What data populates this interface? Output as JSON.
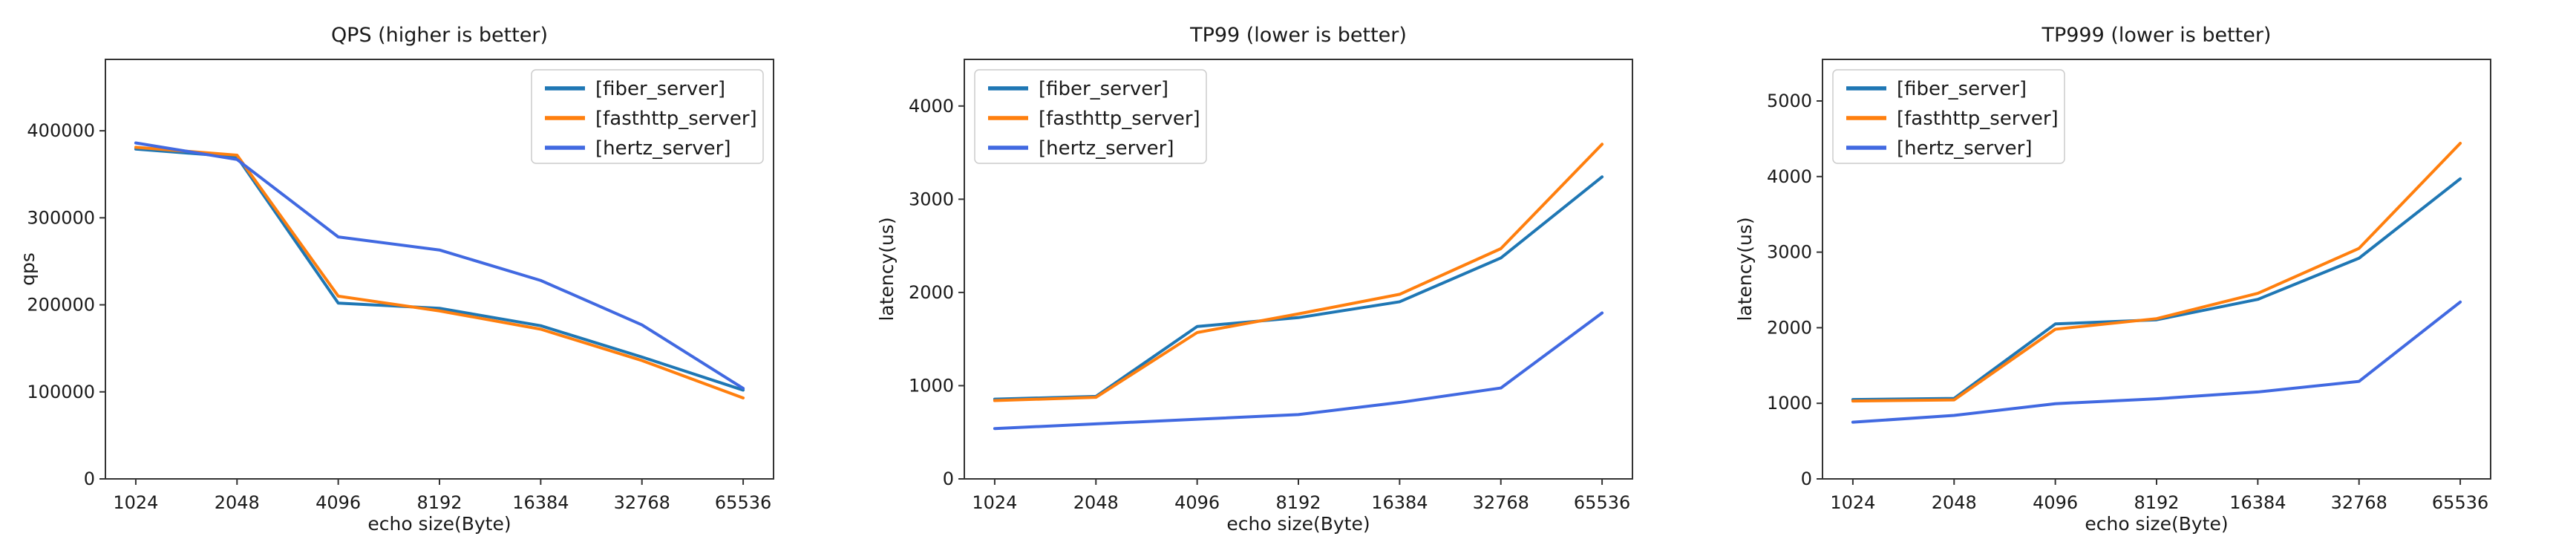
{
  "figure": {
    "background": "#ffffff",
    "description": "Three side-by-side matplotlib-style line charts benchmarking HTTP servers"
  },
  "styles": {
    "spine_color": "#333333",
    "tick_text_color": "#262626",
    "title_color": "#1a1a1a",
    "legend_border_color": "#cccccc",
    "legend_background": "#ffffff",
    "line_width": 4
  },
  "chart_data": [
    {
      "type": "line",
      "title": "QPS (higher is better)",
      "xlabel": "echo size(Byte)",
      "ylabel": "qps",
      "categories": [
        "1024",
        "2048",
        "4096",
        "8192",
        "16384",
        "32768",
        "65536"
      ],
      "series": [
        {
          "name": "[fiber_server]",
          "color": "#1f77b4",
          "values": [
            379000,
            370000,
            202000,
            196000,
            176000,
            140000,
            102000
          ]
        },
        {
          "name": "[fasthttp_server]",
          "color": "#ff7f0e",
          "values": [
            381000,
            372000,
            210000,
            193000,
            172000,
            136000,
            93000
          ]
        },
        {
          "name": "[hertz_server]",
          "color": "#4169e1",
          "values": [
            386000,
            367000,
            278000,
            263000,
            228000,
            177000,
            104000
          ]
        }
      ],
      "yticks": [
        0,
        100000,
        200000,
        300000,
        400000
      ],
      "ylim": [
        0,
        482000
      ],
      "xlim_units": [
        -0.3,
        6.3
      ],
      "legend_loc": "upper-right",
      "grid": false
    },
    {
      "type": "line",
      "title": "TP99 (lower is better)",
      "xlabel": "echo size(Byte)",
      "ylabel": "latency(us)",
      "categories": [
        "1024",
        "2048",
        "4096",
        "8192",
        "16384",
        "32768",
        "65536"
      ],
      "series": [
        {
          "name": "[fiber_server]",
          "color": "#1f77b4",
          "values": [
            855,
            885,
            1635,
            1730,
            1900,
            2370,
            3240
          ]
        },
        {
          "name": "[fasthttp_server]",
          "color": "#ff7f0e",
          "values": [
            840,
            875,
            1570,
            1770,
            1980,
            2470,
            3590
          ]
        },
        {
          "name": "[hertz_server]",
          "color": "#4169e1",
          "values": [
            540,
            590,
            640,
            690,
            820,
            975,
            1780
          ]
        }
      ],
      "yticks": [
        0,
        1000,
        2000,
        3000,
        4000
      ],
      "ylim": [
        0,
        4500
      ],
      "xlim_units": [
        -0.3,
        6.3
      ],
      "legend_loc": "upper-left",
      "grid": false
    },
    {
      "type": "line",
      "title": "TP999 (lower is better)",
      "xlabel": "echo size(Byte)",
      "ylabel": "latency(us)",
      "categories": [
        "1024",
        "2048",
        "4096",
        "8192",
        "16384",
        "32768",
        "65536"
      ],
      "series": [
        {
          "name": "[fiber_server]",
          "color": "#1f77b4",
          "values": [
            1050,
            1065,
            2050,
            2105,
            2375,
            2920,
            3970
          ]
        },
        {
          "name": "[fasthttp_server]",
          "color": "#ff7f0e",
          "values": [
            1030,
            1045,
            1980,
            2120,
            2455,
            3050,
            4440
          ]
        },
        {
          "name": "[hertz_server]",
          "color": "#4169e1",
          "values": [
            750,
            840,
            995,
            1060,
            1150,
            1290,
            2340
          ]
        }
      ],
      "yticks": [
        0,
        1000,
        2000,
        3000,
        4000,
        5000
      ],
      "ylim": [
        0,
        5550
      ],
      "xlim_units": [
        -0.3,
        6.3
      ],
      "legend_loc": "upper-left",
      "grid": false
    }
  ]
}
